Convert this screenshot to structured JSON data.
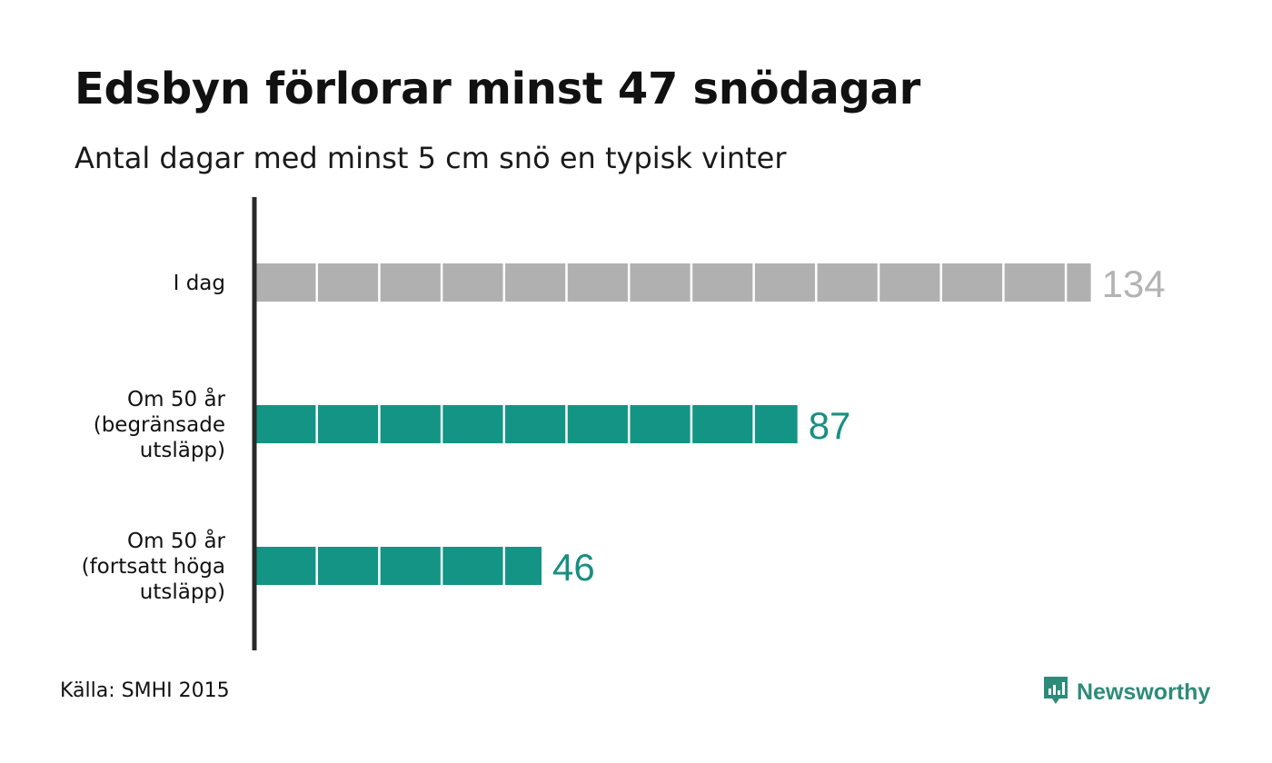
{
  "title": "Edsbyn förlorar minst 47 snödagar",
  "subtitle": "Antal dagar med minst 5 cm snö en typisk vinter",
  "source": "Källa: SMHI 2015",
  "brand": {
    "name": "Newsworthy",
    "icon": "newsworthy-logo-icon",
    "color": "#2e8b7a"
  },
  "chart_data": {
    "type": "bar",
    "orientation": "horizontal",
    "unit_per_block": 10,
    "categories": [
      [
        "I dag"
      ],
      [
        "Om 50 år",
        "(begränsade",
        "utsläpp)"
      ],
      [
        "Om 50 år",
        "(fortsatt höga",
        "utsläpp)"
      ]
    ],
    "values": [
      134,
      87,
      46
    ],
    "colors": [
      "#b0b0b0",
      "#149484",
      "#149484"
    ],
    "label_colors": [
      "#b3b3b3",
      "#178f80",
      "#178f80"
    ]
  }
}
